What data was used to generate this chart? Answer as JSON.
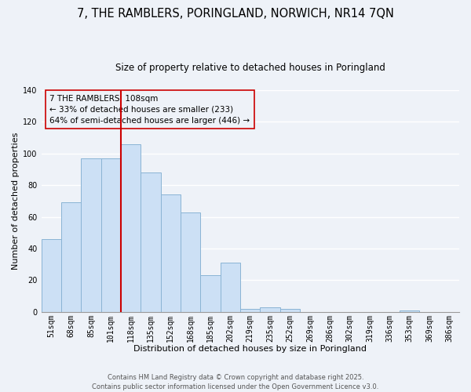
{
  "title": "7, THE RAMBLERS, PORINGLAND, NORWICH, NR14 7QN",
  "subtitle": "Size of property relative to detached houses in Poringland",
  "xlabel": "Distribution of detached houses by size in Poringland",
  "ylabel": "Number of detached properties",
  "bar_labels": [
    "51sqm",
    "68sqm",
    "85sqm",
    "101sqm",
    "118sqm",
    "135sqm",
    "152sqm",
    "168sqm",
    "185sqm",
    "202sqm",
    "219sqm",
    "235sqm",
    "252sqm",
    "269sqm",
    "286sqm",
    "302sqm",
    "319sqm",
    "336sqm",
    "353sqm",
    "369sqm",
    "386sqm"
  ],
  "bar_values": [
    46,
    69,
    97,
    97,
    106,
    88,
    74,
    63,
    23,
    31,
    2,
    3,
    2,
    0,
    0,
    0,
    0,
    0,
    1,
    0,
    0
  ],
  "bar_color": "#cce0f5",
  "bar_edge_color": "#8ab4d4",
  "vline_color": "#cc0000",
  "vline_pos": 3.5,
  "ylim": [
    0,
    140
  ],
  "yticks": [
    0,
    20,
    40,
    60,
    80,
    100,
    120,
    140
  ],
  "annotation_title": "7 THE RAMBLERS: 108sqm",
  "annotation_line1": "← 33% of detached houses are smaller (233)",
  "annotation_line2": "64% of semi-detached houses are larger (446) →",
  "footer1": "Contains HM Land Registry data © Crown copyright and database right 2025.",
  "footer2": "Contains public sector information licensed under the Open Government Licence v3.0.",
  "background_color": "#eef2f8",
  "grid_color": "#ffffff",
  "title_fontsize": 10.5,
  "subtitle_fontsize": 8.5,
  "axis_label_fontsize": 8,
  "tick_fontsize": 7,
  "footer_fontsize": 6,
  "annotation_fontsize": 7.5
}
